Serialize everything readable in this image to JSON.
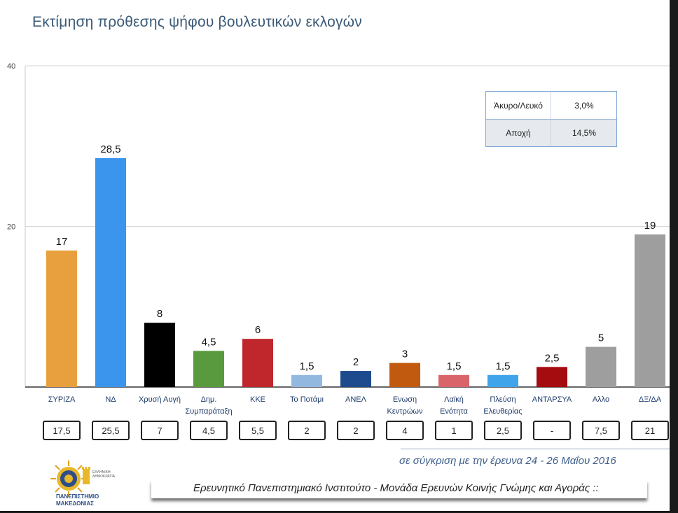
{
  "title": "Εκτίμηση πρόθεσης ψήφου βουλευτικών εκλογών",
  "chart_data": {
    "type": "bar",
    "categories": [
      "ΣΥΡΙΖΑ",
      "ΝΔ",
      "Χρυσή Αυγή",
      "Δημ. Συμπαράταξη",
      "ΚΚΕ",
      "Το Ποτάμι",
      "ΑΝΕΛ",
      "Ενωση Κεντρώων",
      "Λαϊκή Ενότητα",
      "Πλεύση Ελευθερίας",
      "ΑΝΤΑΡΣΥΑ",
      "Αλλο",
      "ΔΞ/ΔΑ"
    ],
    "values": [
      17,
      28.5,
      8,
      4.5,
      6,
      1.5,
      2,
      3,
      1.5,
      1.5,
      2.5,
      5,
      19
    ],
    "value_labels": [
      "17",
      "28,5",
      "8",
      "4,5",
      "6",
      "1,5",
      "2",
      "3",
      "1,5",
      "1,5",
      "2,5",
      "5",
      "19"
    ],
    "colors": [
      "#E8A03E",
      "#3B95EC",
      "#000000",
      "#5A9A3E",
      "#C0272D",
      "#93B8E0",
      "#1E4B8E",
      "#C15A0E",
      "#D9656A",
      "#3FA4EA",
      "#A50C10",
      "#9E9E9E",
      "#9E9E9E"
    ],
    "ylim": [
      0,
      40
    ],
    "yticks": [
      20,
      40
    ],
    "xlabel": "",
    "ylabel": "",
    "grid": true,
    "legend": "none"
  },
  "info_table": {
    "rows": [
      {
        "label": "Άκυρο/Λευκό",
        "value": "3,0%"
      },
      {
        "label": "Αποχή",
        "value": "14,5%"
      }
    ]
  },
  "comparison": {
    "values": [
      "17,5",
      "25,5",
      "7",
      "4,5",
      "5,5",
      "2",
      "2",
      "4",
      "1",
      "2,5",
      "-",
      "7,5",
      "21"
    ],
    "note": "σε σύγκριση με την έρευνα 24 - 26 Μαΐου 2016"
  },
  "footer": {
    "text": "Ερευνητικό Πανεπιστημιακό Ινστιτούτο - Μονάδα Ερευνών Κοινής Γνώμης και Αγοράς ::"
  },
  "logo": {
    "name_line1": "ΠΑΝΕΠΙΣΤΗΜΙΟ",
    "name_line2": "ΜΑΚΕΔΟΝΙΑΣ",
    "small_line1": "ΕΛΛΗΝΙΚΗ",
    "small_line2": "ΔΗΜΟΚΡΑΤΙΑ"
  }
}
